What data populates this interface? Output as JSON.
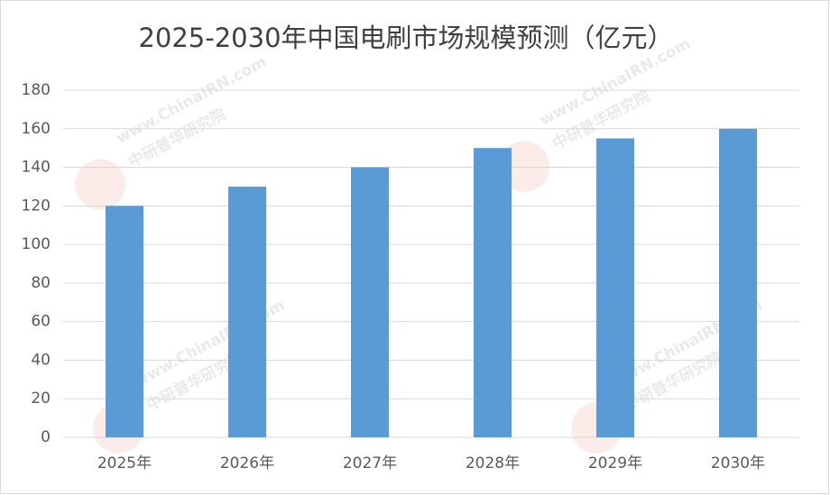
{
  "chart_data": {
    "type": "bar",
    "title": "2025-2030年中国电刷市场规模预测（亿元）",
    "categories": [
      "2025年",
      "2026年",
      "2027年",
      "2028年",
      "2029年",
      "2030年"
    ],
    "values": [
      120,
      130,
      140,
      150,
      155,
      160
    ],
    "color": "#5b9bd5",
    "ylim": [
      0,
      180
    ],
    "yticks": [
      0,
      20,
      40,
      60,
      80,
      100,
      120,
      140,
      160,
      180
    ],
    "grid": true,
    "watermark": [
      "www.ChinaIRN.com",
      "中研普华研究院"
    ]
  }
}
